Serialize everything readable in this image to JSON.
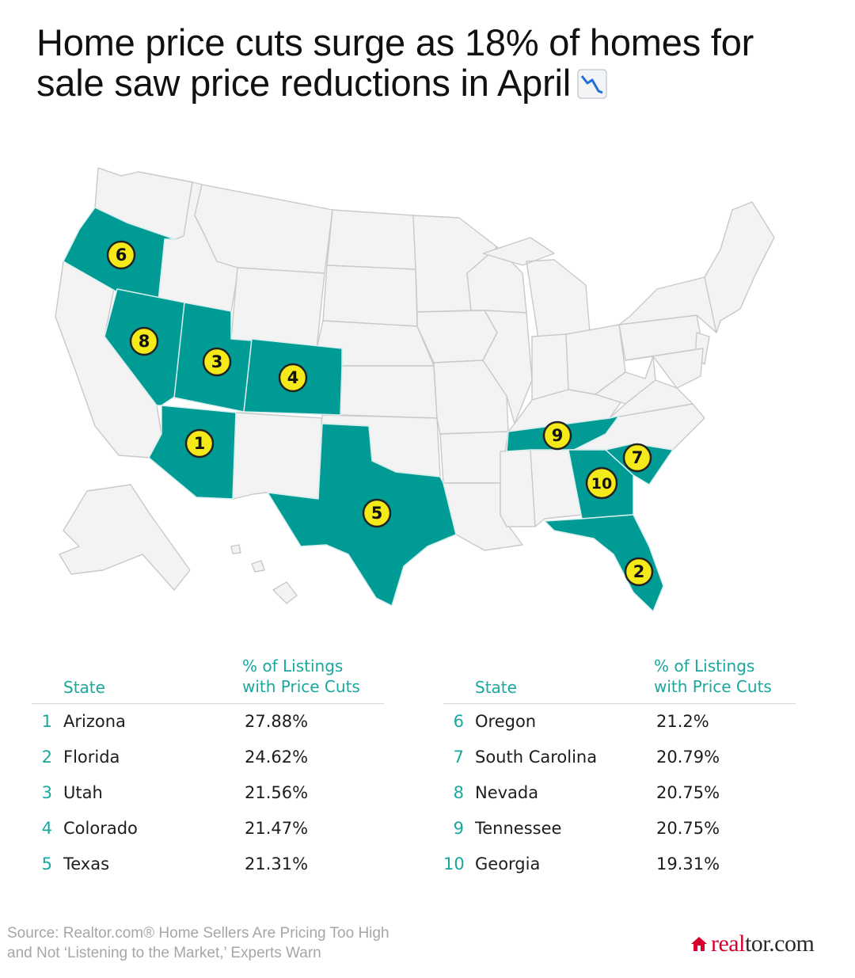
{
  "title": "Home price cuts surge as 18% of homes for sale saw price reductions in April",
  "title_icon": "chart-decreasing-icon",
  "colors": {
    "highlight": "#009b95",
    "base_state": "#f3f3f3",
    "badge": "#f5ea19",
    "header_text": "#1aa79e",
    "logo_red": "#d6002c"
  },
  "map": {
    "badges": [
      {
        "rank": "1",
        "state": "Arizona"
      },
      {
        "rank": "2",
        "state": "Florida"
      },
      {
        "rank": "3",
        "state": "Utah"
      },
      {
        "rank": "4",
        "state": "Colorado"
      },
      {
        "rank": "5",
        "state": "Texas"
      },
      {
        "rank": "6",
        "state": "Oregon"
      },
      {
        "rank": "7",
        "state": "South Carolina"
      },
      {
        "rank": "8",
        "state": "Nevada"
      },
      {
        "rank": "9",
        "state": "Tennessee"
      },
      {
        "rank": "10",
        "state": "Georgia"
      }
    ]
  },
  "table": {
    "header_state": "State",
    "header_pct": "% of Listings\nwith Price Cuts",
    "rows": [
      {
        "rank": "1",
        "state": "Arizona",
        "pct": "27.88%"
      },
      {
        "rank": "2",
        "state": "Florida",
        "pct": "24.62%"
      },
      {
        "rank": "3",
        "state": "Utah",
        "pct": "21.56%"
      },
      {
        "rank": "4",
        "state": "Colorado",
        "pct": "21.47%"
      },
      {
        "rank": "5",
        "state": "Texas",
        "pct": "21.31%"
      },
      {
        "rank": "6",
        "state": "Oregon",
        "pct": "21.2%"
      },
      {
        "rank": "7",
        "state": "South Carolina",
        "pct": "20.79%"
      },
      {
        "rank": "8",
        "state": "Nevada",
        "pct": "20.75%"
      },
      {
        "rank": "9",
        "state": "Tennessee",
        "pct": "20.75%"
      },
      {
        "rank": "10",
        "state": "Georgia",
        "pct": "19.31%"
      }
    ]
  },
  "source": {
    "line1": "Source: Realtor.com® Home Sellers Are Pricing Too High",
    "line2": "and Not ‘Listening to the Market,’ Experts Warn"
  },
  "logo": {
    "icon": "house-icon",
    "part1": "real",
    "part2": "tor.com"
  }
}
